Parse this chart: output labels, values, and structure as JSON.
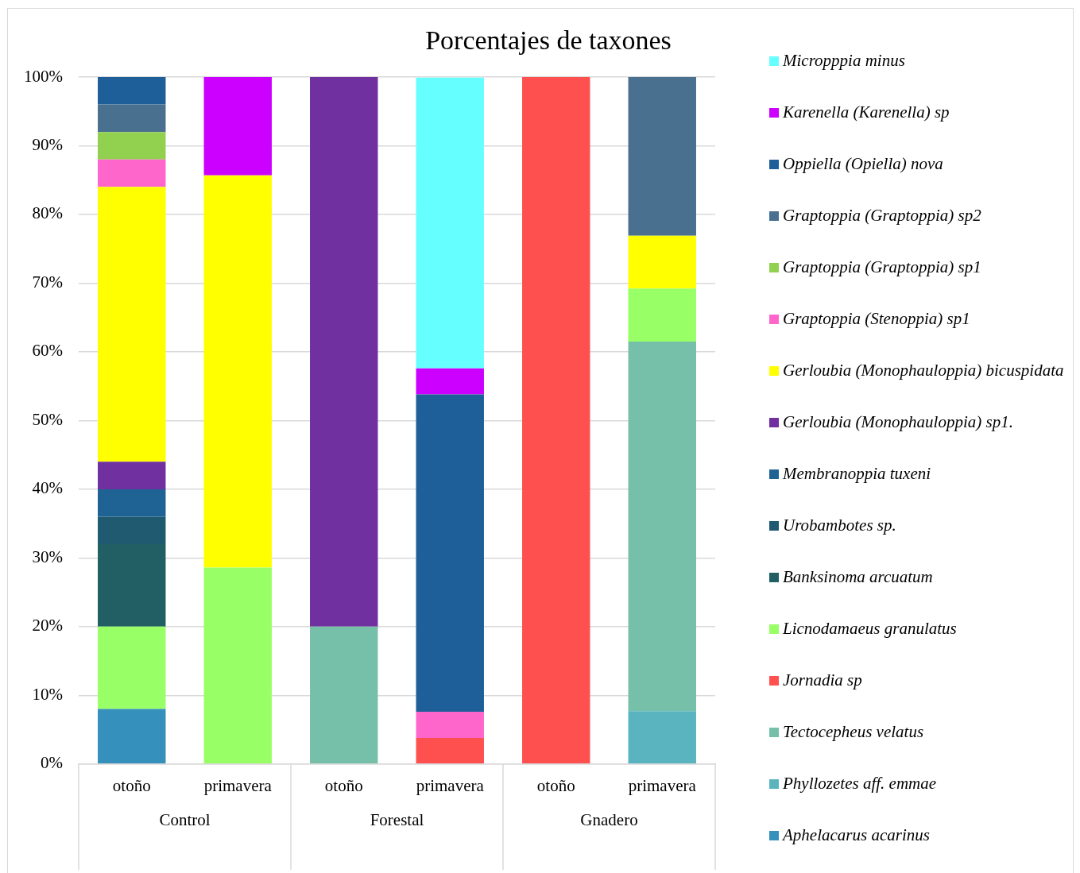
{
  "chart_data": {
    "type": "bar",
    "stacked": true,
    "title": "Porcentajes de taxones",
    "categories": [
      "otoño",
      "primavera",
      "otoño",
      "primavera",
      "otoño",
      "primavera"
    ],
    "annotations": [
      "Control",
      "Forestal",
      "Gnadero"
    ],
    "series": [
      {
        "name": "Aphelacarus acarinus",
        "color": "#3590bb",
        "values": [
          8,
          0,
          0,
          0,
          0,
          0
        ]
      },
      {
        "name": "Phyllozetes aff. emmae",
        "color": "#5ab4c0",
        "values": [
          0,
          0,
          0,
          0,
          0,
          7.7
        ]
      },
      {
        "name": "Tectocepheus velatus",
        "color": "#76bfa8",
        "values": [
          0,
          0,
          20,
          0,
          0,
          53.8
        ]
      },
      {
        "name": "Jornadia sp",
        "color": "#ff5050",
        "values": [
          0,
          0,
          0,
          3.8,
          100,
          0
        ]
      },
      {
        "name": "Licnodamaeus granulatus",
        "color": "#99ff66",
        "values": [
          12,
          28.6,
          0,
          0,
          0,
          7.7
        ]
      },
      {
        "name": "Banksinoma arcuatum",
        "color": "#215f65",
        "values": [
          12,
          0,
          0,
          0,
          0,
          0
        ]
      },
      {
        "name": "Urobambotes sp.",
        "color": "#1f5a70",
        "values": [
          4,
          0,
          0,
          0,
          0,
          0
        ]
      },
      {
        "name": "Membranoppia tuxeni",
        "color": "#1f6395",
        "values": [
          4,
          0,
          0,
          0,
          0,
          0
        ]
      },
      {
        "name": "Gerloubia (Monophauloppia) sp1.",
        "color": "#7030a0",
        "values": [
          4,
          0,
          80,
          0,
          0,
          0
        ]
      },
      {
        "name": "Gerloubia (Monophauloppia) bicuspidata",
        "color": "#ffff00",
        "values": [
          40,
          57.1,
          0,
          0,
          0,
          7.7
        ]
      },
      {
        "name": "Graptoppia (Stenoppia) sp1",
        "color": "#ff66cc",
        "values": [
          4,
          0,
          0,
          3.8,
          0,
          0
        ]
      },
      {
        "name": "Graptoppia (Graptoppia) sp1",
        "color": "#92d050",
        "values": [
          4,
          0,
          0,
          0,
          0,
          0
        ]
      },
      {
        "name": "Graptoppia (Graptoppia) sp2",
        "color": "#4a7090",
        "values": [
          4,
          0,
          0,
          0,
          0,
          23.1
        ]
      },
      {
        "name": "Oppiella (Opiella) nova",
        "color": "#1f5f99",
        "values": [
          4,
          0,
          0,
          46.2,
          0,
          0
        ]
      },
      {
        "name": "Karenella (Karenella) sp",
        "color": "#cc00ff",
        "values": [
          0,
          14.3,
          0,
          3.8,
          0,
          0
        ]
      },
      {
        "name": "Micropppia minus",
        "color": "#66ffff",
        "values": [
          0,
          0,
          0,
          42.3,
          0,
          0
        ]
      }
    ],
    "ylim": [
      0,
      100
    ],
    "yticks": [
      {
        "value": 0,
        "label": "0%"
      },
      {
        "value": 10,
        "label": "10%"
      },
      {
        "value": 20,
        "label": "20%"
      },
      {
        "value": 30,
        "label": "30%"
      },
      {
        "value": 40,
        "label": "40%"
      },
      {
        "value": 50,
        "label": "50%"
      },
      {
        "value": 60,
        "label": "60%"
      },
      {
        "value": 70,
        "label": "70%"
      },
      {
        "value": 80,
        "label": "80%"
      },
      {
        "value": 90,
        "label": "90%"
      },
      {
        "value": 100,
        "label": "100%"
      }
    ],
    "grid": "y",
    "legend": "right"
  }
}
